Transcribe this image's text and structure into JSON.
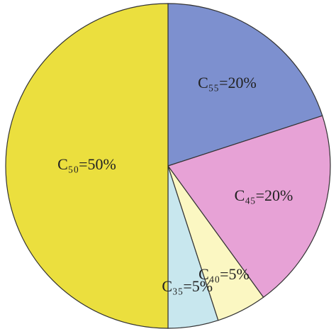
{
  "chart_data": {
    "type": "pie",
    "categories": [
      "C₅₅",
      "C₄₅",
      "C₄₀",
      "C₃₅",
      "C₅₀"
    ],
    "values": [
      20,
      20,
      5,
      5,
      50
    ],
    "value_labels": [
      "C₅₅=20%",
      "C₄₅=20%",
      "C₄₀=5%",
      "C₃₅=5%",
      "C₅₀=50%"
    ],
    "colors": [
      "#7d90cf",
      "#e7a2d6",
      "#fbf7c2",
      "#c8e7ee",
      "#ebdf3e"
    ]
  }
}
